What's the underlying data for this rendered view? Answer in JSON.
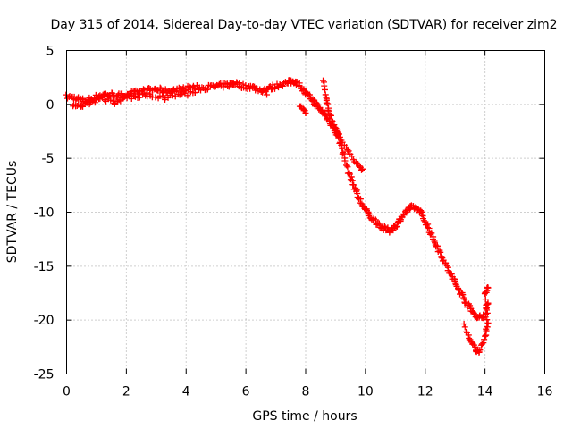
{
  "chart_data": {
    "type": "scatter",
    "title": "Day 315 of 2014, Sidereal Day-to-day VTEC variation (SDTVAR) for receiver zim2",
    "xlabel": "GPS time / hours",
    "ylabel": "SDTVAR / TECUs",
    "xlim": [
      0,
      16
    ],
    "ylim": [
      -25,
      5
    ],
    "xticks": [
      0,
      2,
      4,
      6,
      8,
      10,
      12,
      14,
      16
    ],
    "yticks": [
      -25,
      -20,
      -15,
      -10,
      -5,
      0,
      5
    ],
    "grid": true,
    "marker": "+",
    "color": "#ff0000",
    "series": [
      {
        "name": "SDTVAR",
        "trace_points": [
          [
            0.0,
            0.7
          ],
          [
            0.3,
            0.6
          ],
          [
            0.6,
            0.3
          ],
          [
            0.9,
            0.6
          ],
          [
            1.2,
            0.9
          ],
          [
            1.5,
            0.9
          ],
          [
            1.8,
            0.8
          ],
          [
            2.1,
            1.0
          ],
          [
            2.4,
            1.1
          ],
          [
            2.7,
            1.3
          ],
          [
            3.0,
            1.4
          ],
          [
            3.3,
            1.2
          ],
          [
            3.6,
            1.3
          ],
          [
            3.9,
            1.4
          ],
          [
            4.2,
            1.6
          ],
          [
            4.5,
            1.5
          ],
          [
            4.8,
            1.6
          ],
          [
            5.1,
            1.7
          ],
          [
            5.4,
            1.8
          ],
          [
            5.6,
            2.0
          ],
          [
            5.9,
            1.7
          ],
          [
            6.2,
            1.6
          ],
          [
            6.5,
            1.3
          ],
          [
            6.8,
            1.5
          ],
          [
            7.1,
            1.8
          ],
          [
            7.4,
            2.0
          ],
          [
            7.6,
            2.2
          ],
          [
            7.8,
            1.8
          ],
          [
            8.0,
            1.0
          ],
          [
            8.2,
            0.5
          ],
          [
            8.4,
            -0.2
          ],
          [
            8.6,
            -0.8
          ],
          [
            8.8,
            -1.5
          ],
          [
            9.0,
            -2.5
          ],
          [
            9.2,
            -4.0
          ],
          [
            9.4,
            -6.0
          ],
          [
            9.6,
            -7.5
          ],
          [
            9.8,
            -8.8
          ],
          [
            10.0,
            -9.8
          ],
          [
            10.2,
            -10.5
          ],
          [
            10.4,
            -11.0
          ],
          [
            10.6,
            -11.5
          ],
          [
            10.8,
            -11.7
          ],
          [
            11.0,
            -11.3
          ],
          [
            11.2,
            -10.5
          ],
          [
            11.4,
            -9.8
          ],
          [
            11.6,
            -9.5
          ],
          [
            11.8,
            -9.8
          ],
          [
            12.0,
            -10.8
          ],
          [
            12.2,
            -12.0
          ],
          [
            12.4,
            -13.2
          ],
          [
            12.6,
            -14.3
          ],
          [
            12.8,
            -15.5
          ],
          [
            13.0,
            -16.5
          ],
          [
            13.2,
            -17.5
          ],
          [
            13.4,
            -18.5
          ],
          [
            13.6,
            -19.3
          ],
          [
            13.8,
            -19.8
          ],
          [
            14.0,
            -19.5
          ],
          [
            14.1,
            -18.5
          ]
        ],
        "branch_points": [
          [
            0.2,
            0.0
          ],
          [
            0.5,
            -0.1
          ],
          [
            0.8,
            0.2
          ],
          [
            1.2,
            0.6
          ],
          [
            1.6,
            0.1
          ],
          [
            1.9,
            0.6
          ],
          [
            2.3,
            0.7
          ],
          [
            2.8,
            0.8
          ],
          [
            3.3,
            0.6
          ],
          [
            3.8,
            0.9
          ],
          [
            4.3,
            1.1
          ],
          [
            6.7,
            0.9
          ],
          [
            7.8,
            -0.2
          ],
          [
            8.0,
            -0.8
          ],
          [
            8.6,
            2.2
          ],
          [
            8.7,
            0.5
          ],
          [
            8.8,
            -1.0
          ],
          [
            9.0,
            -2.2
          ],
          [
            9.1,
            -2.8
          ],
          [
            9.4,
            -4.2
          ],
          [
            9.7,
            -5.5
          ],
          [
            9.9,
            -6.0
          ],
          [
            13.3,
            -20.5
          ],
          [
            13.5,
            -21.8
          ],
          [
            13.7,
            -22.8
          ],
          [
            13.8,
            -23.0
          ],
          [
            14.0,
            -21.5
          ],
          [
            14.1,
            -20.3
          ],
          [
            14.0,
            -17.5
          ],
          [
            14.1,
            -17.0
          ]
        ]
      }
    ]
  }
}
